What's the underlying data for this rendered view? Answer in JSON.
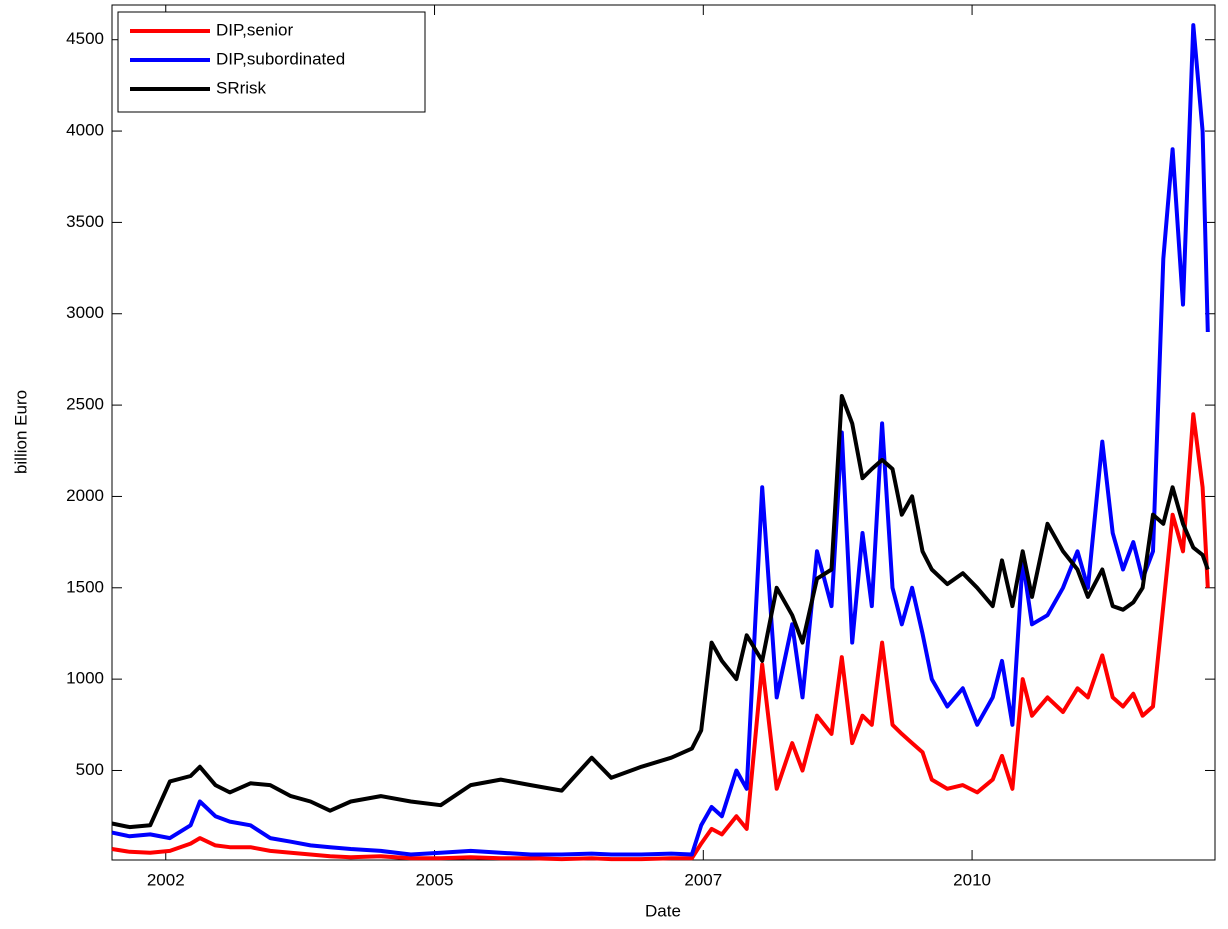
{
  "chart_data": {
    "type": "line",
    "xlabel": "Date",
    "ylabel": "billion Euro",
    "x": [
      2001.88,
      2002.05,
      2002.25,
      2002.44,
      2002.64,
      2002.73,
      2002.88,
      2003.02,
      2003.22,
      2003.41,
      2003.61,
      2003.8,
      2003.99,
      2004.19,
      2004.48,
      2004.77,
      2005.06,
      2005.35,
      2005.64,
      2005.93,
      2006.23,
      2006.52,
      2006.71,
      2007.0,
      2007.29,
      2007.49,
      2007.58,
      2007.68,
      2007.78,
      2007.92,
      2008.02,
      2008.17,
      2008.31,
      2008.46,
      2008.56,
      2008.7,
      2008.84,
      2008.94,
      2009.04,
      2009.14,
      2009.23,
      2009.33,
      2009.43,
      2009.52,
      2009.62,
      2009.72,
      2009.81,
      2009.96,
      2010.11,
      2010.25,
      2010.4,
      2010.49,
      2010.59,
      2010.69,
      2010.78,
      2010.93,
      2011.08,
      2011.22,
      2011.32,
      2011.46,
      2011.56,
      2011.66,
      2011.76,
      2011.85,
      2011.95,
      2012.05,
      2012.14,
      2012.24,
      2012.34,
      2012.43,
      2012.48
    ],
    "series": [
      {
        "name": "DIP,senior",
        "color": "#ff0000",
        "values": [
          70,
          55,
          50,
          60,
          100,
          130,
          90,
          80,
          80,
          60,
          50,
          40,
          30,
          25,
          30,
          20,
          20,
          25,
          20,
          20,
          15,
          20,
          15,
          15,
          20,
          20,
          100,
          180,
          150,
          250,
          180,
          1080,
          400,
          650,
          500,
          800,
          700,
          1120,
          650,
          800,
          750,
          1200,
          750,
          700,
          650,
          600,
          450,
          400,
          420,
          380,
          450,
          580,
          400,
          1000,
          800,
          900,
          820,
          950,
          900,
          1130,
          900,
          850,
          920,
          800,
          850,
          1400,
          1900,
          1700,
          2450,
          2050,
          1500
        ]
      },
      {
        "name": "DIP,subordinated",
        "color": "#0000ff",
        "values": [
          160,
          140,
          150,
          130,
          200,
          330,
          250,
          220,
          200,
          130,
          110,
          90,
          80,
          70,
          60,
          40,
          50,
          60,
          50,
          40,
          40,
          45,
          40,
          40,
          45,
          40,
          200,
          300,
          250,
          500,
          400,
          2050,
          900,
          1300,
          900,
          1700,
          1400,
          2350,
          1200,
          1800,
          1400,
          2400,
          1500,
          1300,
          1500,
          1250,
          1000,
          850,
          950,
          750,
          900,
          1100,
          750,
          1650,
          1300,
          1350,
          1500,
          1700,
          1500,
          2300,
          1800,
          1600,
          1750,
          1550,
          1700,
          3300,
          3900,
          3050,
          4580,
          4000,
          2900
        ]
      },
      {
        "name": "SRrisk",
        "color": "#000000",
        "values": [
          210,
          190,
          200,
          440,
          470,
          520,
          420,
          380,
          430,
          420,
          360,
          330,
          280,
          330,
          360,
          330,
          310,
          420,
          450,
          420,
          390,
          570,
          460,
          520,
          570,
          620,
          720,
          1200,
          1100,
          1000,
          1240,
          1100,
          1500,
          1350,
          1200,
          1550,
          1600,
          2550,
          2400,
          2100,
          2150,
          2200,
          2150,
          1900,
          2000,
          1700,
          1600,
          1520,
          1580,
          1500,
          1400,
          1650,
          1400,
          1700,
          1450,
          1850,
          1700,
          1600,
          1450,
          1600,
          1400,
          1380,
          1420,
          1500,
          1900,
          1850,
          2050,
          1850,
          1720,
          1680,
          1600
        ]
      }
    ],
    "xlim": [
      2001.88,
      2012.55
    ],
    "xticks": [
      {
        "value": 2002.4,
        "label": "2002"
      },
      {
        "value": 2005.0,
        "label": "2005"
      },
      {
        "value": 2007.6,
        "label": "2007"
      },
      {
        "value": 2010.2,
        "label": "2010"
      }
    ],
    "ylim": [
      10,
      4690
    ],
    "yticks": [
      500,
      1000,
      1500,
      2000,
      2500,
      3000,
      3500,
      4000,
      4500
    ],
    "grid": false,
    "legend": "northwest"
  }
}
